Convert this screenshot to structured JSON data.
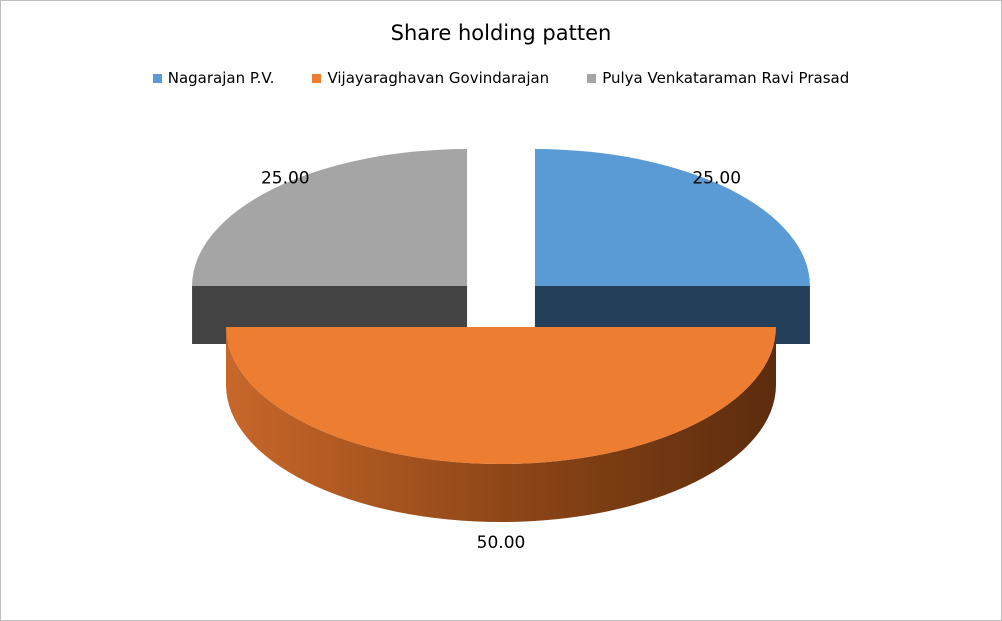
{
  "chart_data": {
    "type": "pie",
    "title": "Share holding patten",
    "categories": [
      "Nagarajan P.V.",
      "Vijayaraghavan Govindarajan",
      "Pulya Venkataraman Ravi Prasad"
    ],
    "values": [
      25,
      50,
      25
    ],
    "data_labels": [
      "25.00",
      "50.00",
      "25.00"
    ],
    "colors": [
      "#5B9BD5",
      "#ED7D31",
      "#A5A5A5"
    ],
    "legend_position": "top",
    "style": "3d-exploded"
  }
}
